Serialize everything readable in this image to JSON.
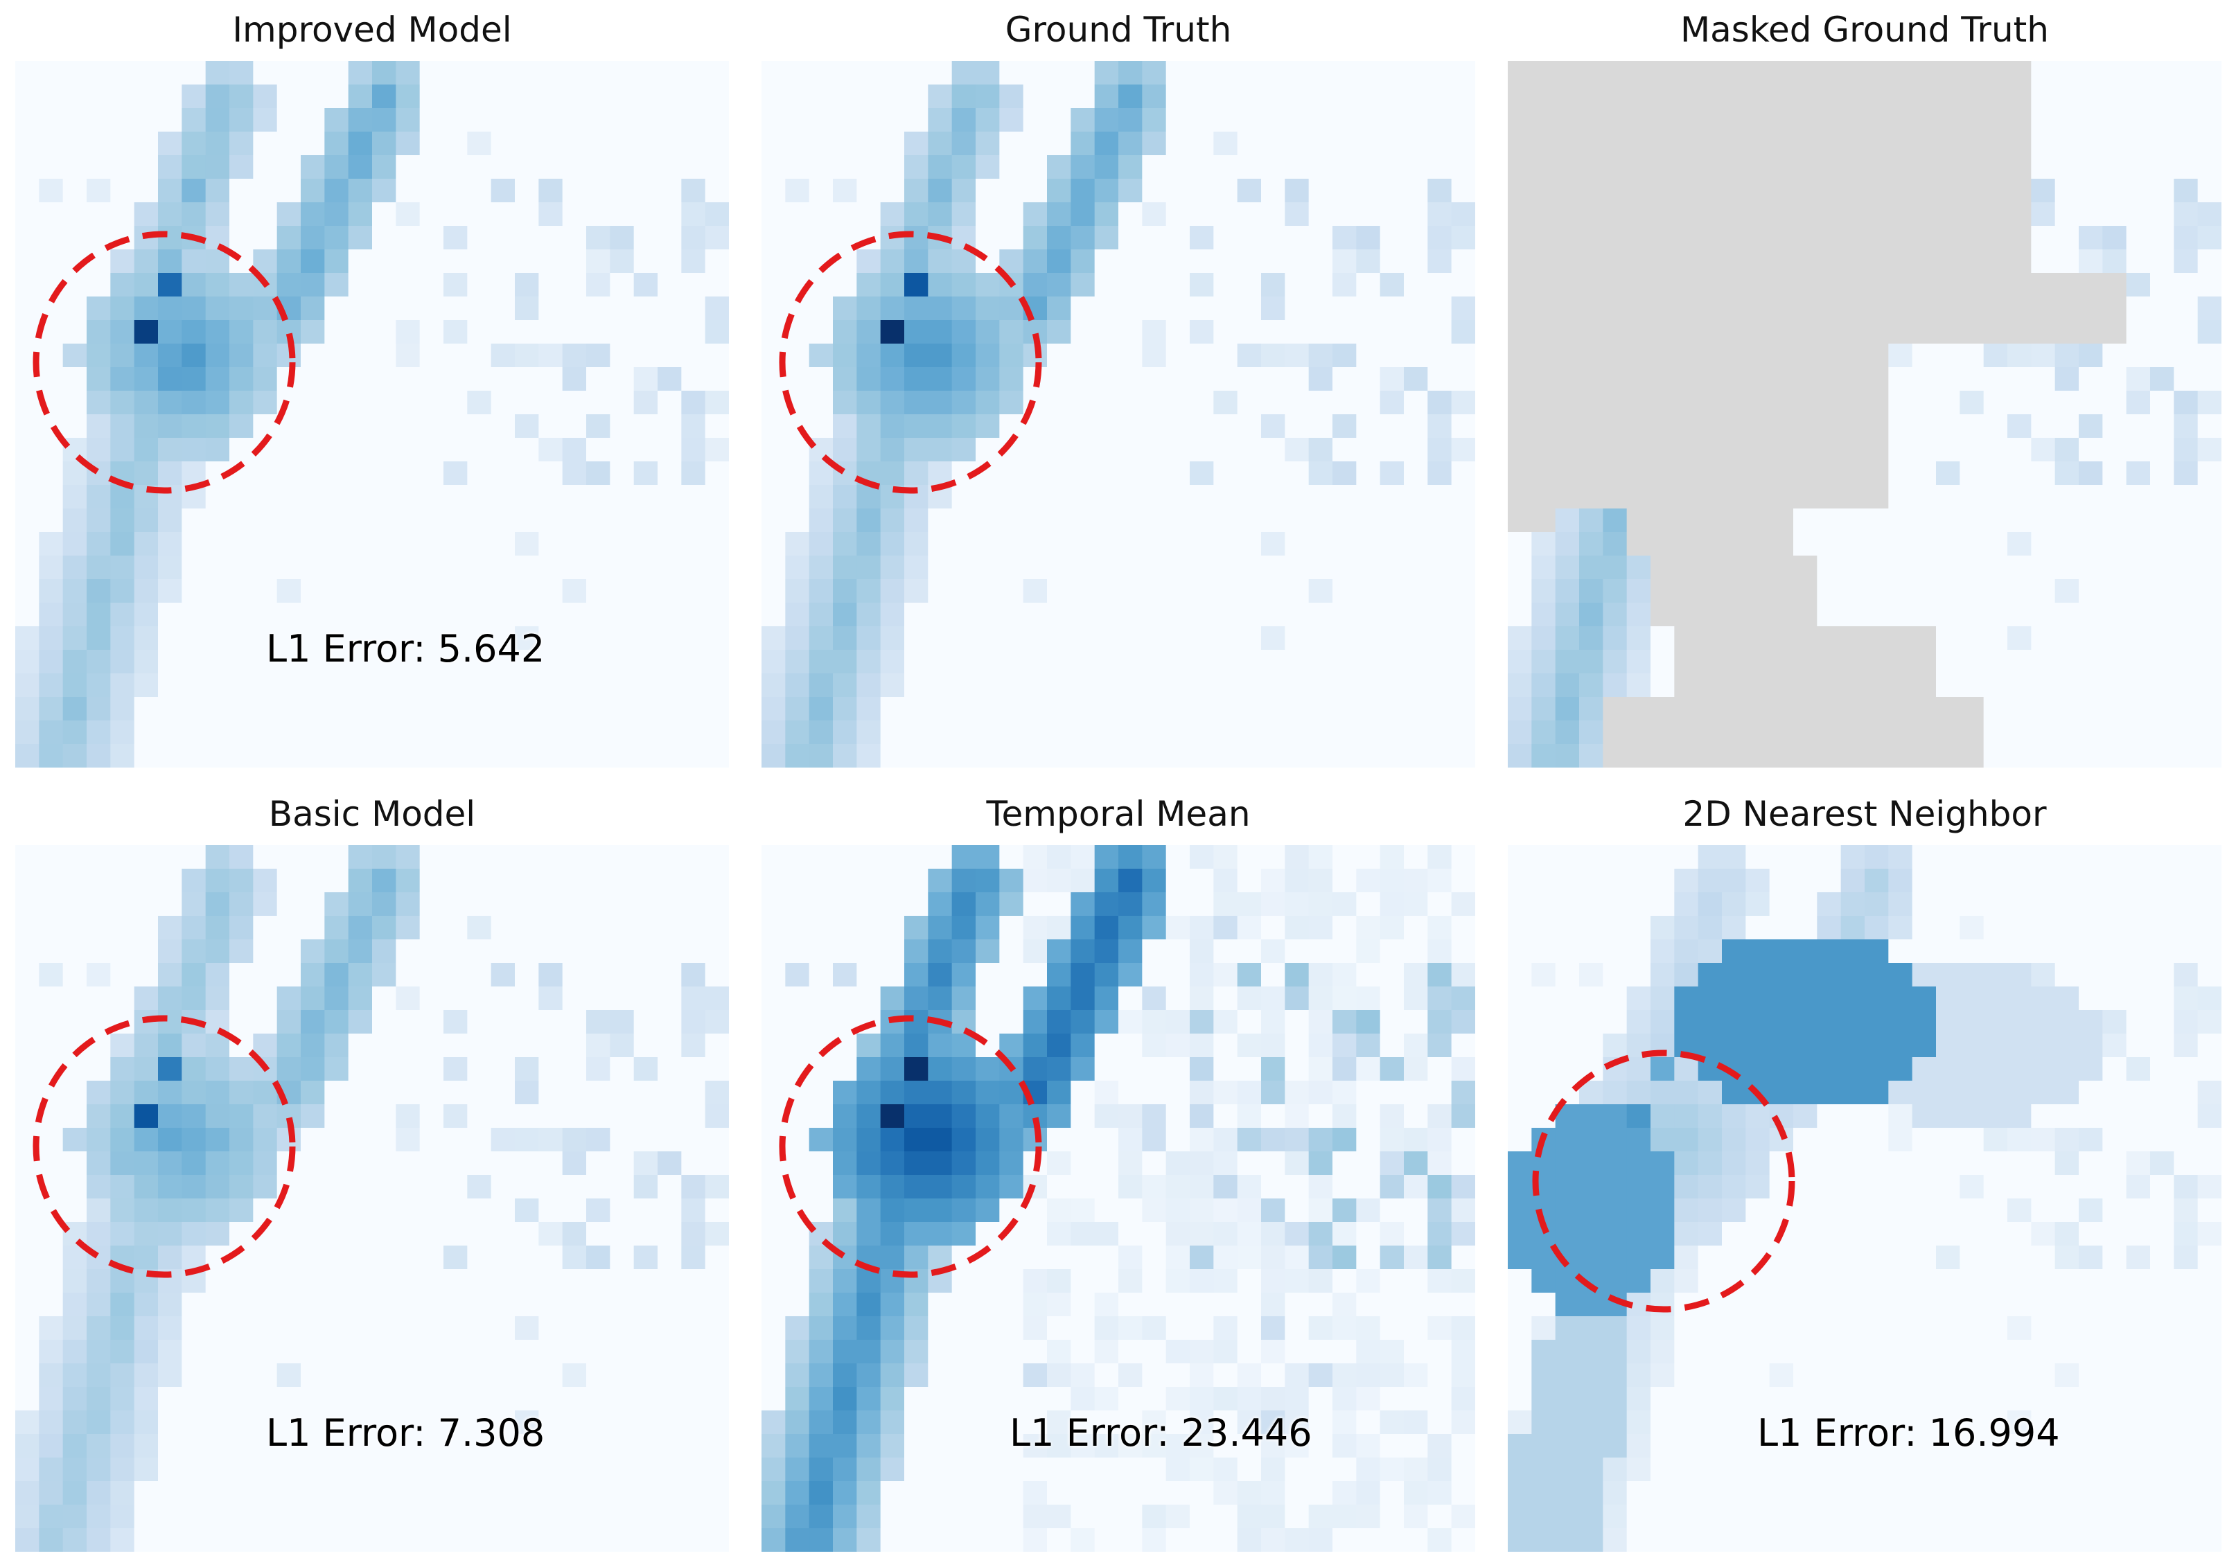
{
  "colors": {
    "background": "#f7fbff",
    "mask": "#d9d9d9",
    "circle": "#e31a1c",
    "cmap": "Blues"
  },
  "panels": [
    {
      "title": "Improved Model",
      "l1_error_label": "L1 Error: 5.642",
      "kind": "improved",
      "circle": true
    },
    {
      "title": "Ground Truth",
      "l1_error_label": "",
      "kind": "truth",
      "circle": true
    },
    {
      "title": "Masked Ground Truth",
      "l1_error_label": "",
      "kind": "masked",
      "circle": false
    },
    {
      "title": "Basic Model",
      "l1_error_label": "L1 Error: 7.308",
      "kind": "basic",
      "circle": true
    },
    {
      "title": "Temporal Mean",
      "l1_error_label": "L1 Error: 23.446",
      "kind": "temporal",
      "circle": true
    },
    {
      "title": "2D Nearest Neighbor",
      "l1_error_label": "L1 Error: 16.994",
      "kind": "nearest",
      "circle": true
    }
  ],
  "chart_data": {
    "type": "heatmap",
    "grid_size": [
      30,
      30
    ],
    "value_range": [
      0,
      1
    ],
    "colormap": "Blues",
    "panels": [
      {
        "title": "Improved Model",
        "l1_error": 5.642
      },
      {
        "title": "Ground Truth",
        "l1_error": null
      },
      {
        "title": "Masked Ground Truth",
        "l1_error": null
      },
      {
        "title": "Basic Model",
        "l1_error": 7.308
      },
      {
        "title": "Temporal Mean",
        "l1_error": 23.446
      },
      {
        "title": "2D Nearest Neighbor",
        "l1_error": 16.994
      }
    ]
  }
}
